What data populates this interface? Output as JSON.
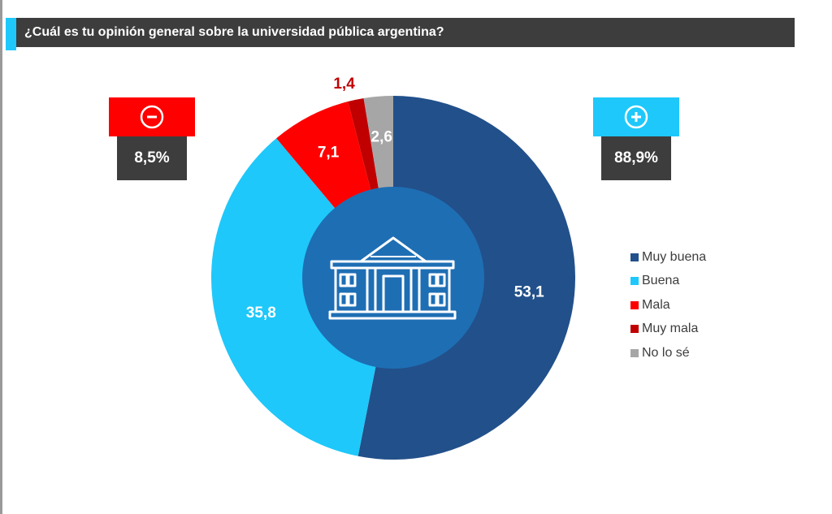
{
  "header": {
    "title": "¿Cuál es tu opinión general sobre la universidad pública argentina?"
  },
  "badges": {
    "negative": {
      "symbol": "-",
      "value": "8,5%",
      "color": "#ff0000",
      "icon": "minus-circle-icon"
    },
    "positive": {
      "symbol": "+",
      "value": "88,9%",
      "color": "#1ec8fa",
      "icon": "plus-circle-icon"
    }
  },
  "center_icon": "university-building-icon",
  "chart_data": {
    "type": "pie",
    "donut": true,
    "start": "top",
    "direction": "clockwise",
    "legend_position": "right",
    "series": [
      {
        "name": "Muy buena",
        "value": 53.1,
        "label": "53,1",
        "color": "#22508a",
        "label_color": "#ffffff"
      },
      {
        "name": "Buena",
        "value": 35.8,
        "label": "35,8",
        "color": "#1ec8fa",
        "label_color": "#ffffff"
      },
      {
        "name": "Mala",
        "value": 7.1,
        "label": "7,1",
        "color": "#ff0000",
        "label_color": "#ffffff"
      },
      {
        "name": "Muy mala",
        "value": 1.4,
        "label": "1,4",
        "color": "#c00000",
        "label_color": "#c00000"
      },
      {
        "name": "No lo sé",
        "value": 2.6,
        "label": "2,6",
        "color": "#a6a6a6",
        "label_color": "#ffffff"
      }
    ]
  }
}
